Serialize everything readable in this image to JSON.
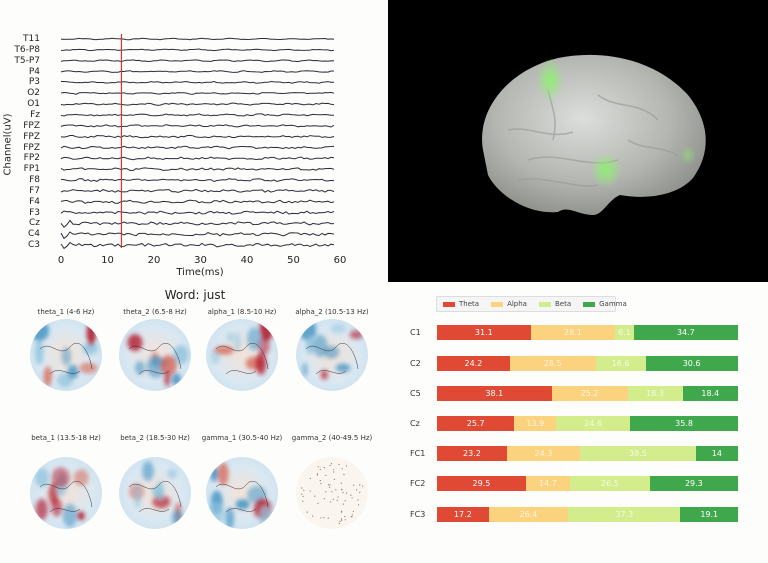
{
  "eeg": {
    "xlabel": "Time(ms)",
    "ylabel": "Channel(uV)",
    "xticks": [
      "0",
      "10",
      "20",
      "30",
      "40",
      "50",
      "60"
    ],
    "channels": [
      "T11",
      "T6-P8",
      "T5-P7",
      "P4",
      "P3",
      "O2",
      "O1",
      "Fz",
      "FPZ",
      "FPZ",
      "FPZ",
      "FP2",
      "FP1",
      "F8",
      "F7",
      "F4",
      "F3",
      "Cz",
      "C4",
      "C3"
    ],
    "marker_time_ms": 13,
    "marker_color": "#e03030",
    "trace_color": "#2a2a3a"
  },
  "brain": {
    "background": "#000000",
    "surface_color": "#b8bab6",
    "activation_color": "#7de06a"
  },
  "topomaps": {
    "title": "Word: just",
    "maps": [
      {
        "label": "theta_1 (4-6 Hz)"
      },
      {
        "label": "theta_2 (6.5-8 Hz)"
      },
      {
        "label": "alpha_1 (8.5-10 Hz)"
      },
      {
        "label": "alpha_2 (10.5-13 Hz)"
      },
      {
        "label": "beta_1 (13.5-18 Hz)"
      },
      {
        "label": "beta_2 (18.5-30 Hz)"
      },
      {
        "label": "gamma_1 (30.5-40 Hz)"
      },
      {
        "label": "gamma_2 (40-49.5 Hz)"
      }
    ]
  },
  "bars": {
    "legend": [
      "Theta",
      "Alpha",
      "Beta",
      "Gamma"
    ],
    "colors": {
      "Theta": "#e04a35",
      "Alpha": "#fbd27d",
      "Beta": "#d3ec8c",
      "Gamma": "#3fa84c"
    }
  },
  "chart_data": [
    {
      "type": "line",
      "title": "",
      "xlabel": "Time(ms)",
      "ylabel": "Channel(uV)",
      "xlim": [
        0,
        60
      ],
      "xticks": [
        0,
        10,
        20,
        30,
        40,
        50,
        60
      ],
      "categories": [
        "T11",
        "T6-P8",
        "T5-P7",
        "P4",
        "P3",
        "O2",
        "O1",
        "Fz",
        "FPZ",
        "FPZ",
        "FPZ",
        "FP2",
        "FP1",
        "F8",
        "F7",
        "F4",
        "F3",
        "Cz",
        "C4",
        "C3"
      ],
      "annotations": [
        {
          "type": "vline",
          "x": 13,
          "color": "#e03030"
        }
      ],
      "grid": false
    },
    {
      "type": "heatmap",
      "title": "Word: just",
      "subplots": [
        "theta_1 (4-6 Hz)",
        "theta_2 (6.5-8 Hz)",
        "alpha_1 (8.5-10 Hz)",
        "alpha_2 (10.5-13 Hz)",
        "beta_1 (13.5-18 Hz)",
        "beta_2 (18.5-30 Hz)",
        "gamma_1 (30.5-40 Hz)",
        "gamma_2 (40-49.5 Hz)"
      ],
      "colormap": "RdBu_r"
    },
    {
      "type": "bar",
      "orientation": "horizontal",
      "stacked": true,
      "categories": [
        "C1",
        "C2",
        "C5",
        "Cz",
        "FC1",
        "FC2",
        "FC3"
      ],
      "series": [
        {
          "name": "Theta",
          "values": [
            31.1,
            24.2,
            38.1,
            25.7,
            23.2,
            29.5,
            17.2
          ]
        },
        {
          "name": "Alpha",
          "values": [
            28.1,
            28.5,
            25.2,
            13.9,
            24.3,
            14.7,
            26.4
          ]
        },
        {
          "name": "Beta",
          "values": [
            6.1,
            16.6,
            18.3,
            24.6,
            38.5,
            26.5,
            37.3
          ]
        },
        {
          "name": "Gamma",
          "values": [
            34.7,
            30.6,
            18.4,
            35.8,
            14.0,
            29.3,
            19.1
          ]
        }
      ],
      "legend_position": "top-left",
      "xlim": [
        0,
        100
      ],
      "grid": false
    }
  ]
}
